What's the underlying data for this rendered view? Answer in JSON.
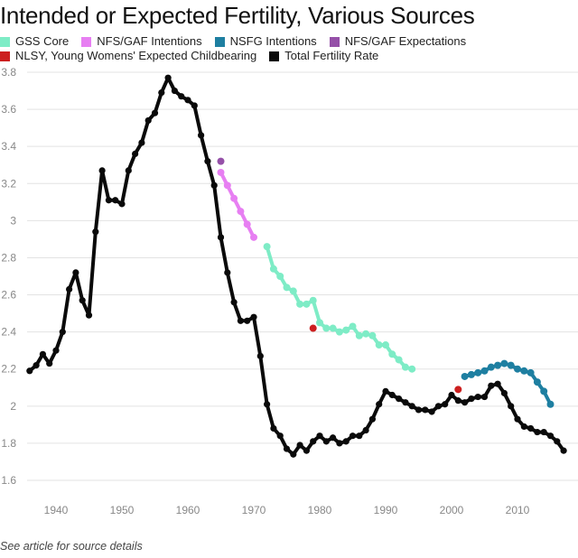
{
  "chart_data": {
    "type": "line",
    "title": "Intended or Expected Fertility, Various Sources",
    "xlabel": "",
    "ylabel": "",
    "xlim": [
      1935,
      2018
    ],
    "ylim": [
      1.6,
      3.8
    ],
    "x_ticks": [
      1940,
      1950,
      1960,
      1970,
      1980,
      1990,
      2000,
      2010
    ],
    "y_ticks": [
      1.6,
      1.8,
      2,
      2.2,
      2.4,
      2.6,
      2.8,
      3,
      3.2,
      3.4,
      3.6,
      3.8
    ],
    "y_tick_labels": [
      "1.6",
      "1.8",
      "2",
      "2.2",
      "2.4",
      "2.6",
      "2.8",
      "3",
      "3.2",
      "3.4",
      "3.6",
      "3.8"
    ],
    "grid": true,
    "legend_position": "top-left",
    "footnote": "See article for source details",
    "series": [
      {
        "name": "GSS Core",
        "color": "#7eecc6",
        "x": [
          1972,
          1973,
          1974,
          1975,
          1976,
          1977,
          1978,
          1979,
          1980,
          1981,
          1982,
          1983,
          1984,
          1985,
          1986,
          1987,
          1988,
          1989,
          1990,
          1991,
          1992,
          1993,
          1994
        ],
        "y": [
          2.86,
          2.74,
          2.7,
          2.64,
          2.62,
          2.55,
          2.55,
          2.57,
          2.45,
          2.42,
          2.42,
          2.4,
          2.41,
          2.43,
          2.38,
          2.39,
          2.38,
          2.33,
          2.33,
          2.28,
          2.25,
          2.21,
          2.2
        ]
      },
      {
        "name": "NFS/GAF Intentions",
        "color": "#e77ff2",
        "x": [
          1965,
          1966,
          1967,
          1968,
          1969,
          1970
        ],
        "y": [
          3.26,
          3.19,
          3.12,
          3.05,
          2.98,
          2.91
        ]
      },
      {
        "name": "NSFG Intentions",
        "color": "#1e7fa1",
        "x": [
          2002,
          2003,
          2004,
          2005,
          2006,
          2007,
          2008,
          2009,
          2010,
          2011,
          2012,
          2013,
          2014,
          2015
        ],
        "y": [
          2.16,
          2.17,
          2.18,
          2.19,
          2.21,
          2.22,
          2.23,
          2.22,
          2.2,
          2.19,
          2.18,
          2.13,
          2.08,
          2.01
        ]
      },
      {
        "name": "NFS/GAF Expectations",
        "color": "#9550a8",
        "x": [
          1965
        ],
        "y": [
          3.32
        ]
      },
      {
        "name": "NLSY, Young Womens' Expected Childbearing",
        "color": "#cc1f1f",
        "x": [
          1979,
          2001
        ],
        "y": [
          2.42,
          2.09
        ]
      },
      {
        "name": "Total Fertility Rate",
        "color": "#0a0a0a",
        "x": [
          1936,
          1937,
          1938,
          1939,
          1940,
          1941,
          1942,
          1943,
          1944,
          1945,
          1946,
          1947,
          1948,
          1949,
          1950,
          1951,
          1952,
          1953,
          1954,
          1955,
          1956,
          1957,
          1958,
          1959,
          1960,
          1961,
          1962,
          1963,
          1964,
          1965,
          1966,
          1967,
          1968,
          1969,
          1970,
          1971,
          1972,
          1973,
          1974,
          1975,
          1976,
          1977,
          1978,
          1979,
          1980,
          1981,
          1982,
          1983,
          1984,
          1985,
          1986,
          1987,
          1988,
          1989,
          1990,
          1991,
          1992,
          1993,
          1994,
          1995,
          1996,
          1997,
          1998,
          1999,
          2000,
          2001,
          2002,
          2003,
          2004,
          2005,
          2006,
          2007,
          2008,
          2009,
          2010,
          2011,
          2012,
          2013,
          2014,
          2015,
          2016,
          2017
        ],
        "y": [
          2.19,
          2.22,
          2.28,
          2.23,
          2.3,
          2.4,
          2.63,
          2.72,
          2.57,
          2.49,
          2.94,
          3.27,
          3.11,
          3.11,
          3.09,
          3.27,
          3.36,
          3.42,
          3.54,
          3.58,
          3.69,
          3.77,
          3.7,
          3.67,
          3.65,
          3.62,
          3.46,
          3.32,
          3.19,
          2.91,
          2.72,
          2.56,
          2.46,
          2.46,
          2.48,
          2.27,
          2.01,
          1.88,
          1.84,
          1.77,
          1.74,
          1.79,
          1.76,
          1.81,
          1.84,
          1.81,
          1.83,
          1.8,
          1.81,
          1.84,
          1.84,
          1.87,
          1.93,
          2.01,
          2.08,
          2.06,
          2.04,
          2.02,
          2.0,
          1.98,
          1.98,
          1.97,
          2.0,
          2.01,
          2.06,
          2.03,
          2.02,
          2.04,
          2.05,
          2.05,
          2.11,
          2.12,
          2.07,
          2.0,
          1.93,
          1.89,
          1.88,
          1.86,
          1.86,
          1.84,
          1.81,
          1.76
        ]
      }
    ]
  }
}
